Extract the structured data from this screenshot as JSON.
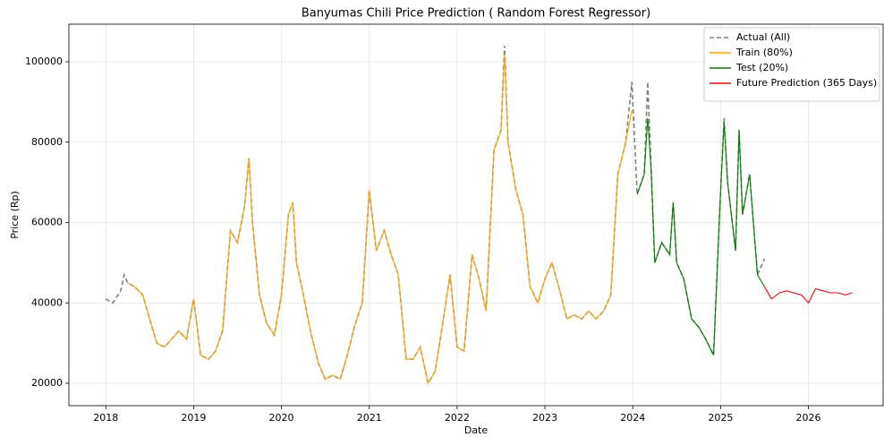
{
  "chart_data": {
    "type": "line",
    "title": "Banyumas Chili Price Prediction ( Random Forest Regressor)",
    "x_label": "Date",
    "y_label": "Price (Rp)",
    "xlim": [
      2017.58,
      2026.85
    ],
    "ylim": [
      14430,
      109360
    ],
    "xticks": [
      2018,
      2019,
      2020,
      2021,
      2022,
      2023,
      2024,
      2025,
      2026
    ],
    "yticks": [
      20000,
      40000,
      60000,
      80000,
      100000
    ],
    "grid": true,
    "legend": "upper right",
    "series": [
      {
        "name": "Actual (All)",
        "color": "#808080",
        "linestyle": "dashed",
        "x": [
          2018.0,
          2018.08,
          2018.17,
          2018.21,
          2018.25,
          2018.33,
          2018.42,
          2018.5,
          2018.58,
          2018.67,
          2018.75,
          2018.83,
          2018.92,
          2019.0,
          2019.08,
          2019.17,
          2019.25,
          2019.33,
          2019.42,
          2019.5,
          2019.58,
          2019.63,
          2019.67,
          2019.75,
          2019.83,
          2019.92,
          2020.0,
          2020.08,
          2020.13,
          2020.17,
          2020.25,
          2020.33,
          2020.42,
          2020.5,
          2020.58,
          2020.67,
          2020.75,
          2020.83,
          2020.92,
          2021.0,
          2021.08,
          2021.17,
          2021.25,
          2021.33,
          2021.42,
          2021.5,
          2021.58,
          2021.67,
          2021.75,
          2021.83,
          2021.92,
          2022.0,
          2022.08,
          2022.17,
          2022.25,
          2022.33,
          2022.42,
          2022.5,
          2022.54,
          2022.58,
          2022.67,
          2022.75,
          2022.83,
          2022.92,
          2023.0,
          2023.08,
          2023.17,
          2023.25,
          2023.33,
          2023.42,
          2023.5,
          2023.58,
          2023.67,
          2023.75,
          2023.83,
          2023.92,
          2023.99,
          2024.05,
          2024.13,
          2024.17,
          2024.21,
          2024.25,
          2024.33,
          2024.42,
          2024.46,
          2024.5,
          2024.58,
          2024.67,
          2024.75,
          2024.83,
          2024.92,
          2025.0,
          2025.04,
          2025.08,
          2025.17,
          2025.21,
          2025.25,
          2025.33,
          2025.42,
          2025.5
        ],
        "values": [
          41000,
          40000,
          43000,
          47000,
          45000,
          44000,
          42000,
          36000,
          30000,
          29000,
          31000,
          33000,
          31000,
          41000,
          27000,
          26000,
          28000,
          33000,
          58000,
          55000,
          64000,
          76000,
          60000,
          42000,
          35000,
          32000,
          42000,
          62000,
          65000,
          50000,
          42000,
          33000,
          25000,
          21000,
          22000,
          21000,
          27000,
          34000,
          40000,
          68000,
          53000,
          58000,
          52000,
          47000,
          26000,
          26000,
          29000,
          20000,
          23000,
          34000,
          47000,
          29000,
          28000,
          52000,
          46000,
          38000,
          78000,
          83000,
          104000,
          80000,
          68000,
          62000,
          44000,
          40000,
          46000,
          50000,
          43000,
          36000,
          37000,
          36000,
          38000,
          36000,
          38000,
          42000,
          72000,
          80000,
          95000,
          67000,
          72000,
          95000,
          73000,
          50000,
          55000,
          52000,
          65000,
          50000,
          46000,
          36000,
          34000,
          31000,
          27000,
          68000,
          86000,
          70000,
          53000,
          83000,
          62000,
          72000,
          47000,
          51000
        ]
      },
      {
        "name": "Train (80%)",
        "color": "#ffa500",
        "linestyle": "solid",
        "x": [
          2018.25,
          2018.33,
          2018.42,
          2018.5,
          2018.58,
          2018.67,
          2018.75,
          2018.83,
          2018.92,
          2019.0,
          2019.08,
          2019.17,
          2019.25,
          2019.33,
          2019.42,
          2019.5,
          2019.58,
          2019.63,
          2019.67,
          2019.75,
          2019.83,
          2019.92,
          2020.0,
          2020.08,
          2020.13,
          2020.17,
          2020.25,
          2020.33,
          2020.42,
          2020.5,
          2020.58,
          2020.67,
          2020.75,
          2020.83,
          2020.92,
          2021.0,
          2021.08,
          2021.17,
          2021.25,
          2021.33,
          2021.42,
          2021.5,
          2021.58,
          2021.67,
          2021.75,
          2021.83,
          2021.92,
          2022.0,
          2022.08,
          2022.17,
          2022.25,
          2022.33,
          2022.42,
          2022.5,
          2022.54,
          2022.58,
          2022.67,
          2022.75,
          2022.83,
          2022.92,
          2023.0,
          2023.08,
          2023.17,
          2023.25,
          2023.33,
          2023.42,
          2023.5,
          2023.58,
          2023.67,
          2023.75,
          2023.83,
          2023.92,
          2023.99
        ],
        "values": [
          45000,
          44000,
          42000,
          36000,
          30000,
          29000,
          31000,
          33000,
          31000,
          41000,
          27000,
          26000,
          28000,
          33000,
          58000,
          55000,
          64000,
          76000,
          60000,
          42000,
          35000,
          32000,
          42000,
          62000,
          65000,
          50000,
          42000,
          33000,
          25000,
          21000,
          22000,
          21000,
          27000,
          34000,
          40000,
          68000,
          53000,
          58000,
          52000,
          47000,
          26000,
          26000,
          29000,
          20000,
          23000,
          34000,
          47000,
          29000,
          28000,
          52000,
          46000,
          38000,
          78000,
          83000,
          102000,
          80000,
          68000,
          62000,
          44000,
          40000,
          46000,
          50000,
          43000,
          36000,
          37000,
          36000,
          38000,
          36000,
          38000,
          42000,
          72000,
          80000,
          88000
        ]
      },
      {
        "name": "Test (20%)",
        "color": "#008000",
        "linestyle": "solid",
        "x": [
          2024.05,
          2024.13,
          2024.17,
          2024.21,
          2024.25,
          2024.33,
          2024.42,
          2024.46,
          2024.5,
          2024.58,
          2024.67,
          2024.75,
          2024.83,
          2024.92,
          2025.0,
          2025.04,
          2025.08,
          2025.17,
          2025.21,
          2025.25,
          2025.33,
          2025.42,
          2025.5
        ],
        "values": [
          67000,
          72000,
          86000,
          73000,
          50000,
          55000,
          52000,
          65000,
          50000,
          46000,
          36000,
          34000,
          31000,
          27000,
          68000,
          85000,
          70000,
          53000,
          83000,
          62000,
          72000,
          47000,
          44000
        ]
      },
      {
        "name": "Future Prediction (365 Days)",
        "color": "#ff0000",
        "linestyle": "solid",
        "x": [
          2025.5,
          2025.58,
          2025.67,
          2025.75,
          2025.83,
          2025.92,
          2026.0,
          2026.08,
          2026.17,
          2026.25,
          2026.33,
          2026.42,
          2026.5
        ],
        "values": [
          44000,
          41000,
          42500,
          43000,
          42500,
          42000,
          40000,
          43500,
          43000,
          42500,
          42500,
          42000,
          42500
        ]
      }
    ]
  }
}
